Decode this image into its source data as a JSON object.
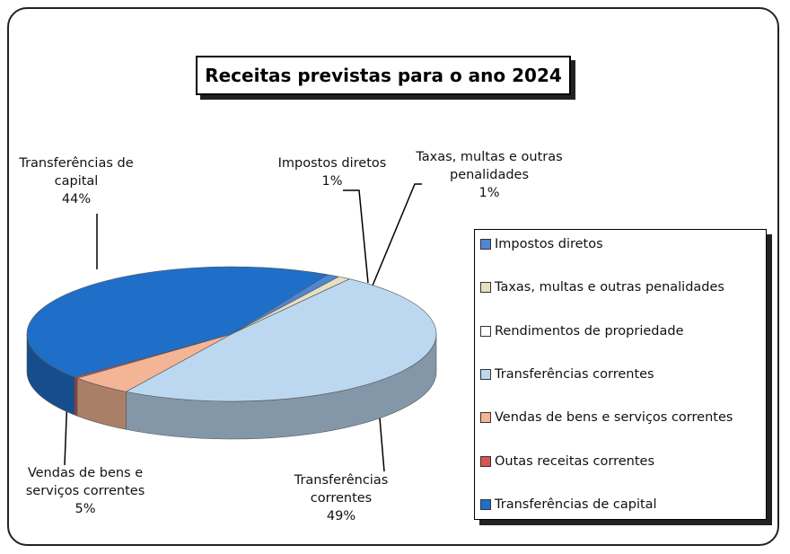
{
  "chart_data": {
    "type": "pie",
    "title": "Receitas previstas para o ano 2024",
    "categories": [
      "Impostos diretos",
      "Taxas, multas e outras penalidades",
      "Rendimentos de propriedade",
      "Transferências correntes",
      "Vendas de bens e serviços correntes",
      "Outas receitas correntes",
      "Transferências de capital"
    ],
    "values": [
      1,
      1,
      0,
      49,
      5,
      0.3,
      44
    ],
    "value_labels": [
      "1%",
      "1%",
      null,
      "49%",
      "5%",
      null,
      "44%"
    ],
    "colors": [
      "#4f86d4",
      "#e6dfc2",
      "#ffffff",
      "#bcd8f0",
      "#f3b595",
      "#d9534f",
      "#1f6fc9"
    ],
    "legend": "right"
  }
}
